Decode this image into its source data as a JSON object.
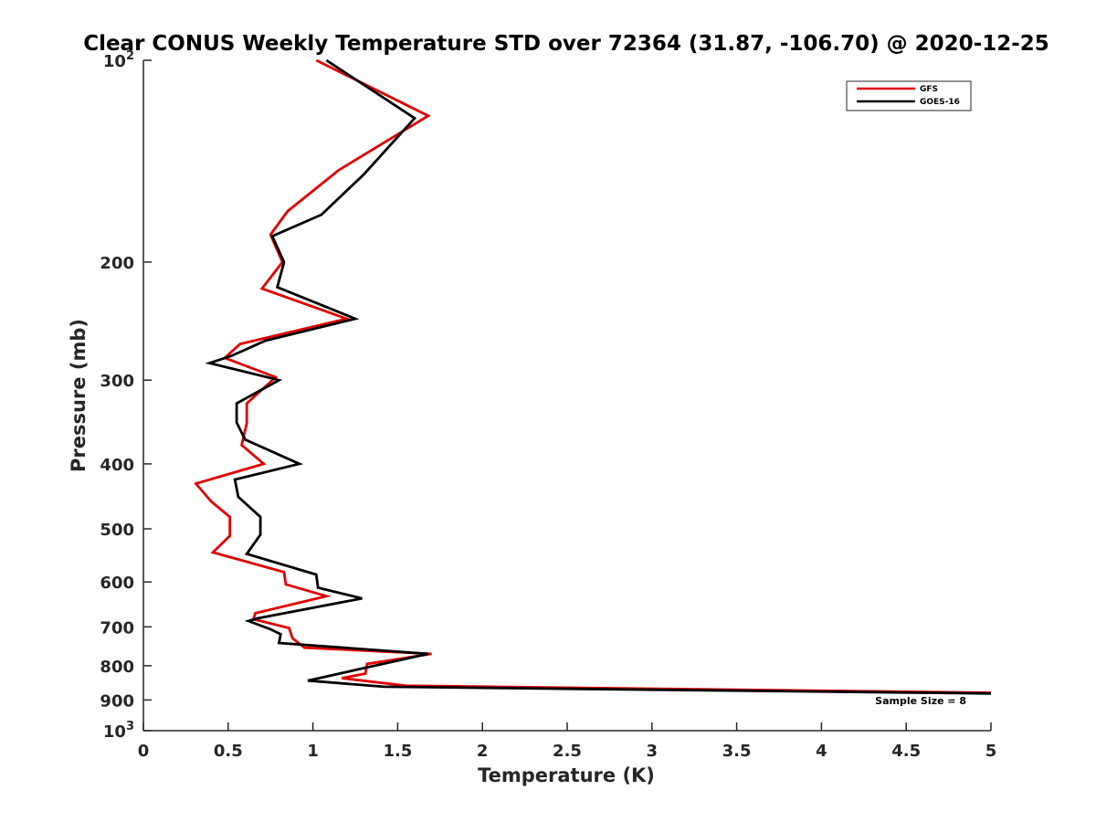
{
  "chart_data": {
    "type": "line",
    "title": "Clear CONUS Weekly Temperature STD over 72364 (31.87, -106.70) @ 2020-12-25",
    "xlabel": "Temperature (K)",
    "ylabel": "Pressure (mb)",
    "xlim": [
      0,
      5
    ],
    "ylim": [
      100,
      1000
    ],
    "y_scale": "log",
    "y_reversed": true,
    "grid": false,
    "legend_position": "top-right",
    "x_ticks": [
      "0",
      "0.5",
      "1",
      "1.5",
      "2",
      "2.5",
      "3",
      "3.5",
      "4",
      "4.5",
      "5"
    ],
    "y_ticks": [
      {
        "value": 100,
        "label": "10",
        "sup": "2"
      },
      {
        "value": 200,
        "label": "200",
        "sup": ""
      },
      {
        "value": 300,
        "label": "300",
        "sup": ""
      },
      {
        "value": 400,
        "label": "400",
        "sup": ""
      },
      {
        "value": 500,
        "label": "500",
        "sup": ""
      },
      {
        "value": 600,
        "label": "600",
        "sup": ""
      },
      {
        "value": 700,
        "label": "700",
        "sup": ""
      },
      {
        "value": 800,
        "label": "800",
        "sup": ""
      },
      {
        "value": 900,
        "label": "900",
        "sup": ""
      },
      {
        "value": 1000,
        "label": "10",
        "sup": "3"
      }
    ],
    "annotation": "Sample Size = 8",
    "series": [
      {
        "name": "GFS",
        "color": "#e00000",
        "points": [
          [
            1.02,
            100
          ],
          [
            1.68,
            121
          ],
          [
            1.15,
            146
          ],
          [
            0.85,
            168
          ],
          [
            0.75,
            182
          ],
          [
            0.82,
            200
          ],
          [
            0.7,
            219
          ],
          [
            1.2,
            243
          ],
          [
            0.57,
            265
          ],
          [
            0.48,
            278
          ],
          [
            0.78,
            297
          ],
          [
            0.61,
            325
          ],
          [
            0.61,
            348
          ],
          [
            0.58,
            375
          ],
          [
            0.71,
            400
          ],
          [
            0.31,
            428
          ],
          [
            0.4,
            455
          ],
          [
            0.51,
            480
          ],
          [
            0.51,
            512
          ],
          [
            0.41,
            542
          ],
          [
            0.83,
            580
          ],
          [
            0.84,
            605
          ],
          [
            1.08,
            630
          ],
          [
            0.66,
            668
          ],
          [
            0.65,
            682
          ],
          [
            0.86,
            703
          ],
          [
            0.88,
            728
          ],
          [
            0.95,
            752
          ],
          [
            1.7,
            768
          ],
          [
            1.32,
            795
          ],
          [
            1.31,
            822
          ],
          [
            1.17,
            835
          ],
          [
            1.55,
            857
          ],
          [
            5.0,
            878
          ]
        ]
      },
      {
        "name": "GOES-16",
        "color": "#000000",
        "points": [
          [
            1.08,
            100
          ],
          [
            1.6,
            122
          ],
          [
            1.3,
            148
          ],
          [
            1.05,
            170
          ],
          [
            0.76,
            183
          ],
          [
            0.83,
            200
          ],
          [
            0.79,
            218
          ],
          [
            1.25,
            243
          ],
          [
            0.72,
            262
          ],
          [
            0.52,
            276
          ],
          [
            0.39,
            283
          ],
          [
            0.8,
            300
          ],
          [
            0.55,
            325
          ],
          [
            0.55,
            347
          ],
          [
            0.6,
            368
          ],
          [
            0.92,
            400
          ],
          [
            0.54,
            422
          ],
          [
            0.56,
            448
          ],
          [
            0.69,
            480
          ],
          [
            0.69,
            510
          ],
          [
            0.61,
            545
          ],
          [
            1.02,
            585
          ],
          [
            1.03,
            612
          ],
          [
            1.29,
            635
          ],
          [
            0.67,
            680
          ],
          [
            0.62,
            686
          ],
          [
            0.75,
            706
          ],
          [
            0.81,
            718
          ],
          [
            0.8,
            740
          ],
          [
            1.68,
            768
          ],
          [
            1.27,
            810
          ],
          [
            0.97,
            842
          ],
          [
            1.42,
            860
          ],
          [
            5.0,
            880
          ]
        ]
      }
    ]
  }
}
